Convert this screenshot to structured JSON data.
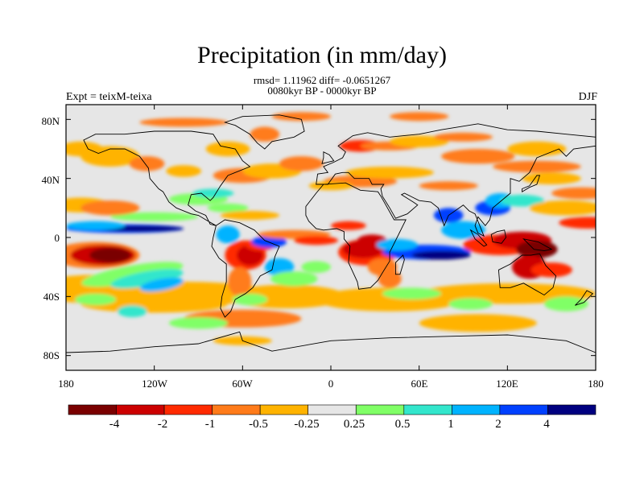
{
  "title": "Precipitation (in mm/day)",
  "stats_line": "rmsd= 1.11962 diff= -0.0651267",
  "period_line": "0080kyr BP - 0000kyr BP",
  "experiment_label": "Expt = teixM-teixa",
  "season_label": "DJF",
  "lat_ticks": [
    "80N",
    "40N",
    "0",
    "40S",
    "80S"
  ],
  "lon_ticks": [
    "180",
    "120W",
    "60W",
    "0",
    "60E",
    "120E",
    "180"
  ],
  "colorbar": {
    "labels": [
      "-4",
      "-2",
      "-1",
      "-0.5",
      "-0.25",
      "0.25",
      "0.5",
      "1",
      "2",
      "4"
    ],
    "colors": [
      "#7a0000",
      "#cc0000",
      "#ff2a00",
      "#ff7b1a",
      "#ffb300",
      "#e6e6e6",
      "#80ff66",
      "#33e6cc",
      "#00b3ff",
      "#0040ff",
      "#000080"
    ]
  },
  "chart_data": {
    "type": "heatmap",
    "x_range": [
      -180,
      180
    ],
    "y_range": [
      -90,
      90
    ],
    "units": "mm/day",
    "levels": [
      -4,
      -2,
      -1,
      -0.5,
      -0.25,
      0.25,
      0.5,
      1,
      2,
      4
    ]
  }
}
